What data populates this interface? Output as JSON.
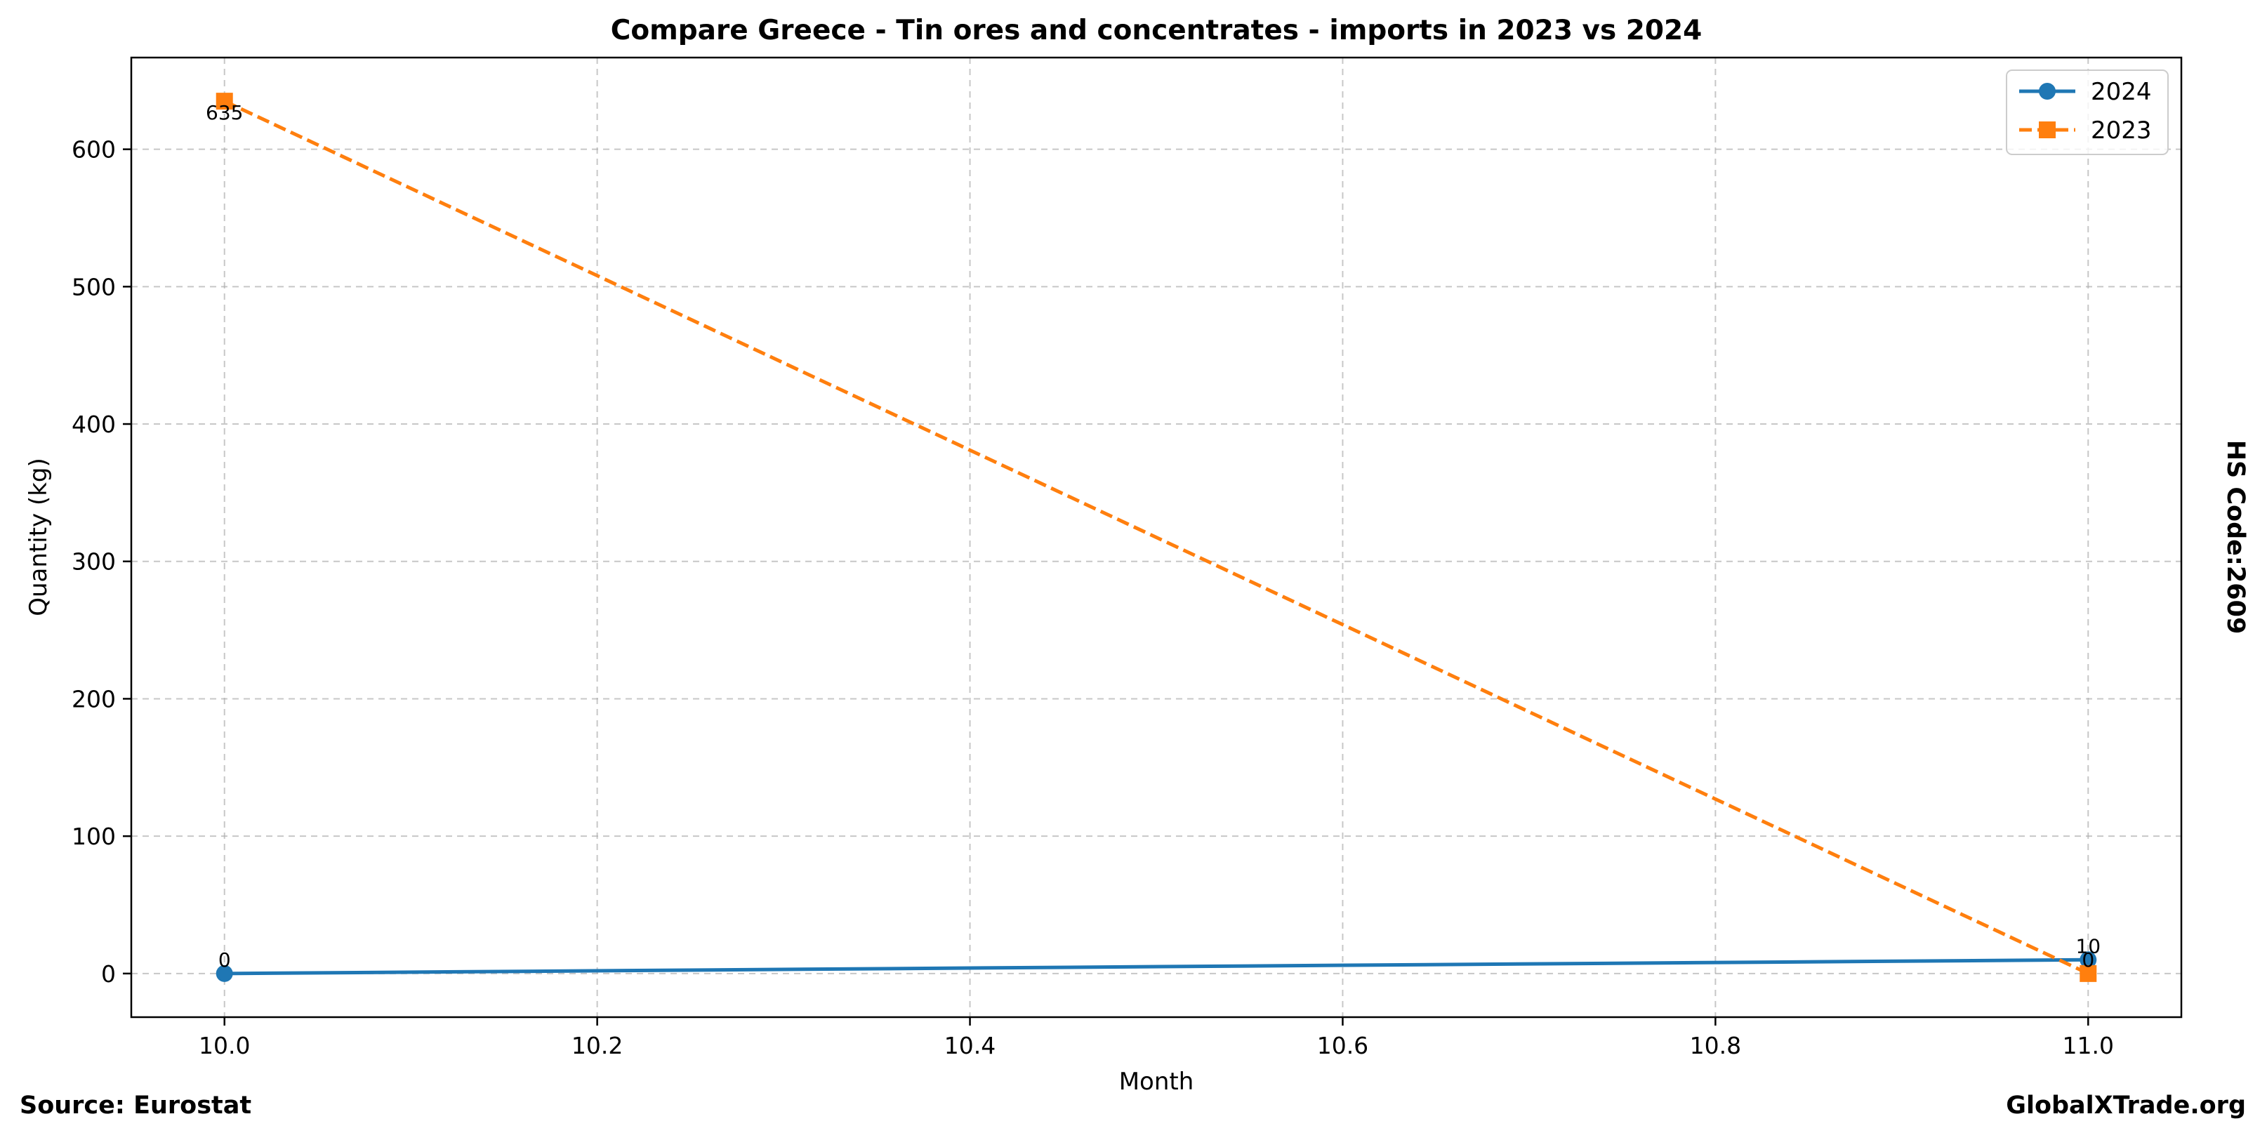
{
  "chart_data": {
    "type": "line",
    "title": "Compare Greece - Tin ores and concentrates - imports in 2023 vs 2024",
    "xlabel": "Month",
    "ylabel": "Quantity (kg)",
    "side_label": "HS Code:2609",
    "x": [
      10.0,
      11.0
    ],
    "xlim": [
      9.95,
      11.05
    ],
    "ylim": [
      -31.75,
      666.75
    ],
    "x_ticks": [
      "10.0",
      "10.2",
      "10.4",
      "10.6",
      "10.8",
      "11.0"
    ],
    "y_ticks": [
      "0",
      "100",
      "200",
      "300",
      "400",
      "500",
      "600"
    ],
    "grid": true,
    "legend_position": "top-right",
    "series": [
      {
        "name": "2024",
        "values": [
          0,
          10
        ],
        "labels": [
          "0",
          "10"
        ],
        "color": "#1f77b4",
        "marker": "circle",
        "line_style": "solid"
      },
      {
        "name": "2023",
        "values": [
          635,
          0
        ],
        "labels": [
          "635",
          "0"
        ],
        "color": "#ff7f0e",
        "marker": "square",
        "line_style": "dashed"
      }
    ]
  },
  "footer": {
    "source": "Source: Eurostat",
    "brand": "GlobalXTrade.org"
  }
}
